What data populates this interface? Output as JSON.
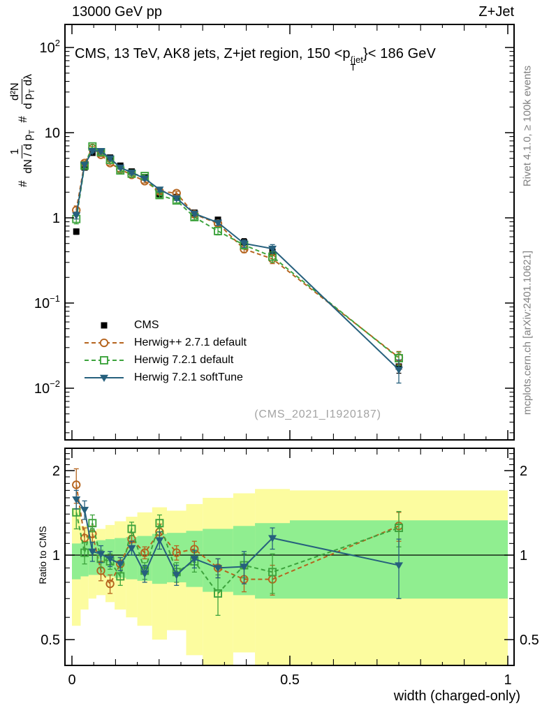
{
  "header": {
    "left": "13000 GeV pp",
    "right": "Z+Jet"
  },
  "title": {
    "p1": "CMS, 13 TeV, AK8 jets, Z+jet region, 150 <p",
    "sup": "{jet",
    "sub": "T",
    "p2": "}< 186 GeV"
  },
  "ylabel": {
    "h1": "#",
    "n1": "1",
    "d1a": "dN / d p",
    "d1s": "T",
    "h2": "#",
    "n2": "d²N",
    "d2a": "d p",
    "d2s": "T",
    "d2b": " dλ"
  },
  "ratio_label": "Ratio to CMS",
  "watermark": "(CMS_2021_I1920187)",
  "side_notes": {
    "top": "Rivet 4.1.0, ≥ 100k events",
    "bottom": "mcplots.cern.ch [arXiv:2401.10621]"
  },
  "xaxis": {
    "title": "width (charged-only)",
    "ticks": [
      {
        "label": "0",
        "value": 0
      },
      {
        "label": "0.5",
        "value": 0.5
      },
      {
        "label": "1",
        "value": 1
      }
    ]
  },
  "yaxis_main": {
    "ticks": [
      {
        "label": "10",
        "exp": "2",
        "value": 100
      },
      {
        "label": "10",
        "exp": "",
        "value": 10
      },
      {
        "label": "1",
        "exp": "",
        "value": 1
      },
      {
        "label": "10",
        "exp": "-1",
        "value": 0.1
      },
      {
        "label": "10",
        "exp": "-2",
        "value": 0.01
      }
    ]
  },
  "yaxis_ratio": {
    "ticks": [
      {
        "label": "2",
        "value": 2
      },
      {
        "label": "1",
        "value": 1
      },
      {
        "label": "0.5",
        "value": 0.5
      }
    ]
  },
  "legend": {
    "items": [
      {
        "key": "cms",
        "label": "CMS"
      },
      {
        "key": "hpp",
        "label": "Herwig++ 2.7.1 default"
      },
      {
        "key": "h7",
        "label": "Herwig 7.2.1 default"
      },
      {
        "key": "soft",
        "label": "Herwig 7.2.1 softTune"
      }
    ]
  },
  "colors": {
    "cms": "#000000",
    "hpp": "#b5641e",
    "h7": "#3da33d",
    "soft": "#26607d",
    "band_yellow": "#fcfc9f",
    "band_green": "#90ee90",
    "gray_text": "#808080",
    "watermark": "#a3a3a3"
  },
  "chart_data": {
    "type": "line",
    "title": "CMS, 13 TeV, AK8 jets, Z+jet region, 150 < pT{jet} < 186 GeV",
    "xlabel": "width (charged-only)",
    "ylabel": "# 1/(dN/dpT) d²N/(dpT dλ)",
    "ratio_ylabel": "Ratio to CMS",
    "legend_position": "middle-left",
    "grid": false,
    "xlim": [
      0,
      1
    ],
    "main_ylog_range": [
      0.0024,
      186
    ],
    "ratio_ylog_range": [
      0.404,
      2.42
    ],
    "x": [
      0.01,
      0.029,
      0.047,
      0.0665,
      0.0875,
      0.111,
      0.137,
      0.167,
      0.201,
      0.24,
      0.281,
      0.335,
      0.395,
      0.46,
      0.75
    ],
    "bin_edges": [
      0.0,
      0.02,
      0.038,
      0.056,
      0.077,
      0.098,
      0.124,
      0.15,
      0.184,
      0.218,
      0.262,
      0.3,
      0.37,
      0.42,
      0.5,
      1.0
    ],
    "ratio_reference": 1,
    "series": [
      {
        "key": "cms",
        "name": "CMS",
        "marker": "filled-square",
        "line": "none",
        "values": [
          0.69,
          3.9,
          5.8,
          6.0,
          5.1,
          4.1,
          3.5,
          3.0,
          1.9,
          1.75,
          1.15,
          0.95,
          0.52,
          0.4,
          0.018
        ],
        "errors": [
          0.05,
          0.2,
          0.25,
          0.25,
          0.22,
          0.2,
          0.18,
          0.15,
          0.12,
          0.1,
          0.07,
          0.06,
          0.05,
          0.04,
          0.003
        ]
      },
      {
        "key": "hpp",
        "name": "Herwig++ 2.7.1 default",
        "marker": "open-circle",
        "line": "dashed",
        "values": [
          1.23,
          4.4,
          6.6,
          5.5,
          4.4,
          3.7,
          3.2,
          2.7,
          2.05,
          1.95,
          1.1,
          0.86,
          0.43,
          0.33,
          0.023
        ],
        "errors": [
          0.15,
          0.25,
          0.3,
          0.25,
          0.22,
          0.18,
          0.16,
          0.13,
          0.12,
          0.1,
          0.07,
          0.06,
          0.04,
          0.04,
          0.004
        ],
        "ratio": [
          1.78,
          1.15,
          1.19,
          0.88,
          0.79,
          0.93,
          1.14,
          1.02,
          1.21,
          1.02,
          1.05,
          0.9,
          0.82,
          0.82,
          1.27
        ],
        "ratio_err": [
          0.25,
          0.1,
          0.08,
          0.07,
          0.06,
          0.05,
          0.06,
          0.05,
          0.08,
          0.06,
          0.07,
          0.07,
          0.08,
          0.1,
          0.15
        ]
      },
      {
        "key": "h7",
        "name": "Herwig 7.2.1 default",
        "marker": "open-square",
        "line": "dashed",
        "values": [
          0.97,
          4.1,
          6.9,
          5.9,
          4.8,
          3.6,
          3.3,
          3.1,
          1.85,
          1.6,
          1.02,
          0.7,
          0.48,
          0.35,
          0.0225
        ],
        "errors": [
          0.12,
          0.25,
          0.3,
          0.25,
          0.22,
          0.18,
          0.16,
          0.14,
          0.12,
          0.1,
          0.07,
          0.07,
          0.05,
          0.05,
          0.004
        ],
        "ratio": [
          1.42,
          1.02,
          1.3,
          0.97,
          0.95,
          0.84,
          1.24,
          0.88,
          1.3,
          0.87,
          0.95,
          0.73,
          0.92,
          0.87,
          1.25
        ],
        "ratio_err": [
          0.18,
          0.09,
          0.09,
          0.07,
          0.06,
          0.06,
          0.07,
          0.06,
          0.09,
          0.07,
          0.08,
          0.12,
          0.09,
          0.14,
          0.18
        ]
      },
      {
        "key": "soft",
        "name": "Herwig 7.2.1 softTune",
        "marker": "filled-triangle-down",
        "line": "solid",
        "values": [
          1.07,
          4.2,
          6.1,
          6.1,
          5.0,
          3.9,
          3.4,
          2.9,
          2.15,
          1.7,
          1.12,
          0.88,
          0.5,
          0.435,
          0.0165
        ],
        "errors": [
          0.1,
          0.22,
          0.28,
          0.26,
          0.22,
          0.18,
          0.16,
          0.14,
          0.12,
          0.1,
          0.07,
          0.06,
          0.05,
          0.05,
          0.005
        ],
        "ratio": [
          1.58,
          1.45,
          1.03,
          1.01,
          0.97,
          0.93,
          1.06,
          0.86,
          1.13,
          0.85,
          0.97,
          0.9,
          0.91,
          1.15,
          0.92
        ],
        "ratio_err": [
          0.12,
          0.11,
          0.08,
          0.07,
          0.06,
          0.05,
          0.06,
          0.06,
          0.08,
          0.07,
          0.07,
          0.07,
          0.12,
          0.1,
          0.22
        ]
      }
    ],
    "bands": {
      "yellow": {
        "lo": [
          0.56,
          0.64,
          0.7,
          0.72,
          0.68,
          0.64,
          0.6,
          0.56,
          0.5,
          0.54,
          0.44,
          0.36,
          0.45,
          0.3,
          0.39
        ],
        "hi": [
          1.47,
          1.27,
          1.22,
          1.24,
          1.28,
          1.32,
          1.37,
          1.42,
          1.48,
          1.44,
          1.52,
          1.6,
          1.66,
          1.72,
          1.7
        ]
      },
      "green": {
        "lo": [
          0.82,
          0.84,
          0.85,
          0.85,
          0.84,
          0.83,
          0.82,
          0.81,
          0.79,
          0.8,
          0.77,
          0.74,
          0.72,
          0.7,
          0.7
        ],
        "hi": [
          1.1,
          1.11,
          1.12,
          1.13,
          1.14,
          1.15,
          1.16,
          1.17,
          1.19,
          1.2,
          1.22,
          1.24,
          1.27,
          1.3,
          1.33
        ]
      }
    }
  }
}
